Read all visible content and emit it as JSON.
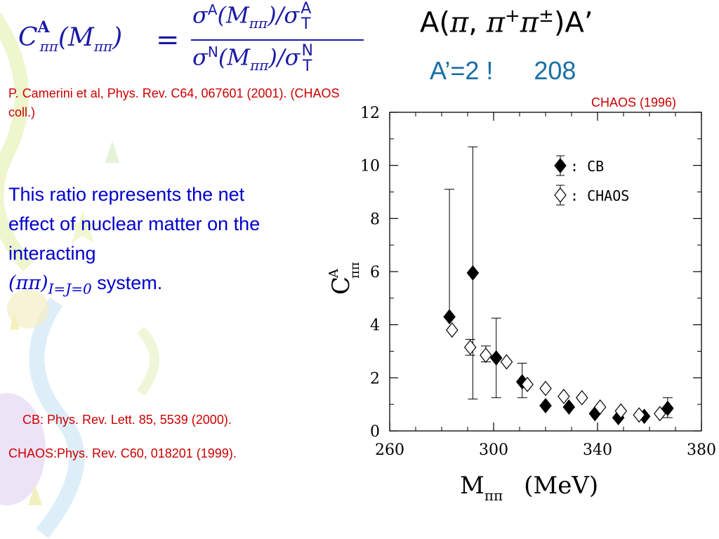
{
  "formula": {
    "lhs_symbol": "C",
    "lhs_sup": "A",
    "lhs_sub": "ππ",
    "lhs_arg": "(M",
    "lhs_arg_sub": "ππ",
    "lhs_close": ")",
    "equals": "=",
    "num_sigma": "σ",
    "num_sup": "A",
    "num_arg": "(M",
    "num_arg_sub": "ππ",
    "num_close": ")/σ",
    "num_stack_top": "A",
    "num_stack_bottom": "T",
    "den_sigma": "σ",
    "den_sup": "N",
    "den_arg": "(M",
    "den_arg_sub": "ππ",
    "den_close": ")/σ",
    "den_stack_top": "N",
    "den_stack_bottom": "T"
  },
  "reaction": {
    "prefix": "A(",
    "pi1": "π",
    "comma": ", ",
    "pi2": "π",
    "pi2_sup": "+",
    "pi3": "π",
    "pi3_sup": "±",
    "suffix": ")A’"
  },
  "targets": {
    "first": "A’=2 !",
    "second": "208"
  },
  "reference_1": "P. Camerini et al, Phys. Rev.  C64, 067601 (2001). (CHAOS coll.)",
  "explanation": {
    "line": "This ratio represents the net effect of nuclear matter on the interacting",
    "math": "(ππ)",
    "math_sub": "I=J=0",
    "tail": "system."
  },
  "reference_2": "CB: Phys. Rev. Lett. 85, 5539 (2000).",
  "reference_3": "CHAOS:Phys. Rev.  C60, 018201 (1999).",
  "chart_data": {
    "type": "scatter",
    "title": "CHAOS (1996)",
    "xlabel": "M",
    "xlabel_sub": "ππ",
    "xlabel_unit": "(MeV)",
    "ylabel": "C",
    "ylabel_sup": "A",
    "ylabel_sub": "ππ",
    "xlim": [
      260,
      380
    ],
    "ylim": [
      0,
      12
    ],
    "x_ticks": [
      260,
      300,
      340,
      380
    ],
    "y_ticks": [
      0,
      2,
      4,
      6,
      8,
      10,
      12
    ],
    "grid": false,
    "legend_position": "top-right",
    "series": [
      {
        "name": ": CB",
        "marker": "filled-diamond",
        "points": [
          {
            "x": 283,
            "y": 4.3,
            "yerr_low": 4.3,
            "yerr_high": 9.1
          },
          {
            "x": 292,
            "y": 5.95,
            "yerr_low": 1.2,
            "yerr_high": 10.7
          },
          {
            "x": 301,
            "y": 2.75,
            "yerr_low": 1.25,
            "yerr_high": 4.25
          },
          {
            "x": 311,
            "y": 1.85,
            "yerr_low": 1.25,
            "yerr_high": 2.55
          },
          {
            "x": 320,
            "y": 0.95
          },
          {
            "x": 329,
            "y": 0.9
          },
          {
            "x": 339,
            "y": 0.65
          },
          {
            "x": 348,
            "y": 0.5
          },
          {
            "x": 358,
            "y": 0.55
          },
          {
            "x": 367,
            "y": 0.85,
            "yerr_low": 0.5,
            "yerr_high": 1.25
          }
        ]
      },
      {
        "name": ": CHAOS",
        "marker": "open-diamond",
        "points": [
          {
            "x": 284,
            "y": 3.8
          },
          {
            "x": 291,
            "y": 3.15,
            "yerr_low": 2.85,
            "yerr_high": 3.45
          },
          {
            "x": 297,
            "y": 2.85,
            "yerr_low": 2.6,
            "yerr_high": 3.2
          },
          {
            "x": 305,
            "y": 2.6
          },
          {
            "x": 313,
            "y": 1.75
          },
          {
            "x": 320,
            "y": 1.6
          },
          {
            "x": 327,
            "y": 1.3
          },
          {
            "x": 334,
            "y": 1.25
          },
          {
            "x": 341,
            "y": 0.9
          },
          {
            "x": 349,
            "y": 0.75
          },
          {
            "x": 356,
            "y": 0.6
          },
          {
            "x": 364,
            "y": 0.65
          }
        ]
      }
    ]
  }
}
